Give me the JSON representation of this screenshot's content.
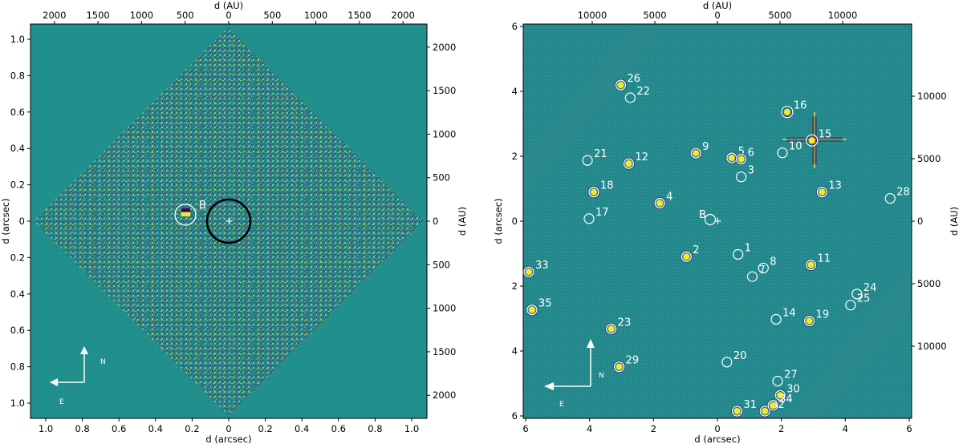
{
  "left_panel": {
    "xlabel": "d (arcsec)",
    "ylabel": "d (arcsec)",
    "top_label": "d (AU)",
    "right_label": "d (AU)",
    "bottom_ticks": [
      "1.0",
      "0.8",
      "0.6",
      "0.4",
      "0.2",
      "0",
      "0.2",
      "0.4",
      "0.6",
      "0.8",
      "1.0"
    ],
    "left_ticks": [
      "1.0",
      "0.8",
      "0.6",
      "0.4",
      "0.2",
      "0",
      "0.2",
      "0.4",
      "0.6",
      "0.8",
      "1.0"
    ],
    "top_ticks": [
      "2000",
      "1500",
      "1000",
      "500",
      "0",
      "500",
      "1000",
      "1500",
      "2000"
    ],
    "right_ticks": [
      "2000",
      "1500",
      "1000",
      "500",
      "0",
      "500",
      "1000",
      "1500",
      "2000"
    ],
    "companion_label": "B",
    "compass": {
      "north": "N",
      "east": "E"
    }
  },
  "right_panel": {
    "xlabel": "d (arcsec)",
    "ylabel": "d (arcsec)",
    "top_label": "d (AU)",
    "right_label": "d (AU)",
    "bottom_ticks": [
      "6",
      "4",
      "2",
      "0",
      "2",
      "4",
      "6"
    ],
    "left_ticks": [
      "6",
      "4",
      "2",
      "0",
      "2",
      "4",
      "6"
    ],
    "top_ticks": [
      "10000",
      "5000",
      "0",
      "5000",
      "10000"
    ],
    "right_ticks": [
      "10000",
      "5000",
      "0",
      "5000",
      "10000"
    ],
    "companion_label": "B",
    "compass": {
      "north": "N",
      "east": "E"
    },
    "sources": [
      {
        "id": "1",
        "x": 0.65,
        "y": -1.05
      },
      {
        "id": "2",
        "x": -0.98,
        "y": -1.12
      },
      {
        "id": "3",
        "x": 0.75,
        "y": 1.4
      },
      {
        "id": "4",
        "x": -1.82,
        "y": 0.57
      },
      {
        "id": "5",
        "x": 0.45,
        "y": 2.0
      },
      {
        "id": "6",
        "x": 0.75,
        "y": 1.96
      },
      {
        "id": "7",
        "x": 1.1,
        "y": -1.75
      },
      {
        "id": "8",
        "x": 1.45,
        "y": -1.48
      },
      {
        "id": "9",
        "x": -0.68,
        "y": 2.15
      },
      {
        "id": "10",
        "x": 2.05,
        "y": 2.16
      },
      {
        "id": "11",
        "x": 2.95,
        "y": -1.38
      },
      {
        "id": "12",
        "x": -2.8,
        "y": 1.82
      },
      {
        "id": "13",
        "x": 3.3,
        "y": 0.92
      },
      {
        "id": "14",
        "x": 1.85,
        "y": -3.1
      },
      {
        "id": "15",
        "x": 2.98,
        "y": 2.55
      },
      {
        "id": "16",
        "x": 2.2,
        "y": 3.45
      },
      {
        "id": "17",
        "x": -4.05,
        "y": 0.08
      },
      {
        "id": "18",
        "x": -3.9,
        "y": 0.92
      },
      {
        "id": "19",
        "x": 2.9,
        "y": -3.15
      },
      {
        "id": "20",
        "x": 0.3,
        "y": -4.45
      },
      {
        "id": "21",
        "x": -4.1,
        "y": 1.92
      },
      {
        "id": "22",
        "x": -2.75,
        "y": 3.9
      },
      {
        "id": "23",
        "x": -3.35,
        "y": -3.4
      },
      {
        "id": "24",
        "x": 4.4,
        "y": -2.3
      },
      {
        "id": "25",
        "x": 4.2,
        "y": -2.65
      },
      {
        "id": "26",
        "x": -3.05,
        "y": 4.3
      },
      {
        "id": "27",
        "x": 1.9,
        "y": -5.05
      },
      {
        "id": "28",
        "x": 5.45,
        "y": 0.72
      },
      {
        "id": "29",
        "x": -3.1,
        "y": -4.6
      },
      {
        "id": "30",
        "x": 1.98,
        "y": -5.5
      },
      {
        "id": "31",
        "x": 0.62,
        "y": -6.0
      },
      {
        "id": "32",
        "x": 1.5,
        "y": -6.0
      },
      {
        "id": "33",
        "x": -5.95,
        "y": -1.6
      },
      {
        "id": "34",
        "x": 1.75,
        "y": -5.82
      },
      {
        "id": "35",
        "x": -5.85,
        "y": -2.8
      }
    ]
  },
  "colors": {
    "background": "#21908d",
    "frame": "#000000",
    "circle_white": "#ffffff",
    "circle_black": "#000000"
  }
}
